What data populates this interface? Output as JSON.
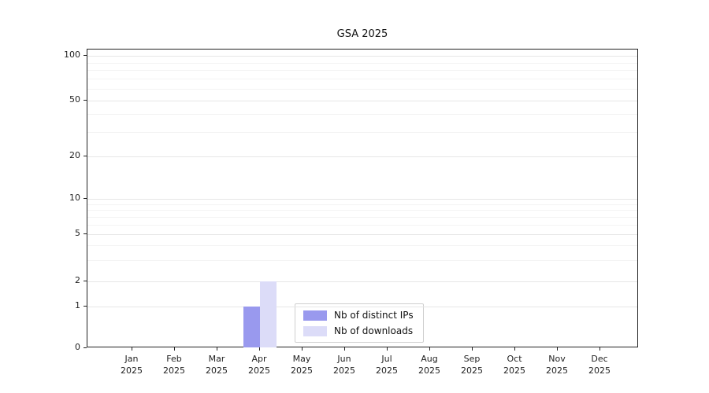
{
  "chart_data": {
    "type": "bar",
    "title": "GSA 2025",
    "categories": [
      "Jan 2025",
      "Feb 2025",
      "Mar 2025",
      "Apr 2025",
      "May 2025",
      "Jun 2025",
      "Jul 2025",
      "Aug 2025",
      "Sep 2025",
      "Oct 2025",
      "Nov 2025",
      "Dec 2025"
    ],
    "series": [
      {
        "name": "Nb of distinct IPs",
        "color": "#9999ee",
        "values": [
          0,
          0,
          0,
          1,
          0,
          0,
          0,
          0,
          0,
          0,
          0,
          0
        ]
      },
      {
        "name": "Nb of downloads",
        "color": "#dcdcf8",
        "values": [
          0,
          0,
          0,
          2,
          0,
          0,
          0,
          0,
          0,
          0,
          0,
          0
        ]
      }
    ],
    "yscale": "log",
    "yticks": [
      0,
      1,
      2,
      5,
      10,
      20,
      50,
      100
    ],
    "yminor_gridlines": [
      3,
      4,
      6,
      7,
      8,
      9,
      30,
      40,
      60,
      70,
      80,
      90
    ],
    "ylim": [
      0,
      110
    ],
    "grid": "horizontal",
    "legend_position": "lower center",
    "xlabel": "",
    "ylabel": ""
  }
}
